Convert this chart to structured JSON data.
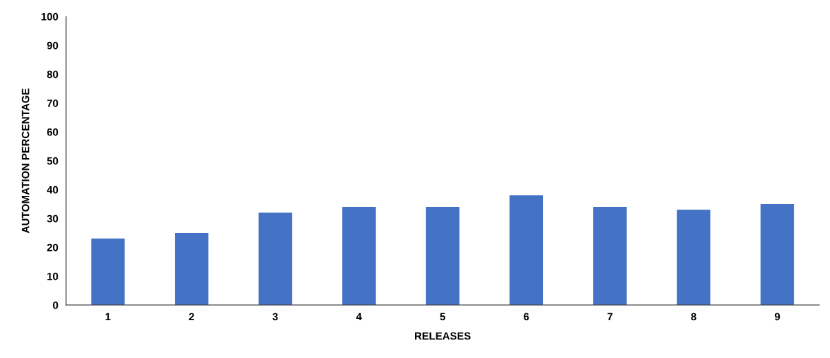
{
  "chart_data": {
    "type": "bar",
    "xlabel": "RELEASES",
    "ylabel": "AUTOMATION PERCENTAGE",
    "categories": [
      "1",
      "2",
      "3",
      "4",
      "5",
      "6",
      "7",
      "8",
      "9"
    ],
    "values": [
      23,
      25,
      32,
      34,
      34,
      38,
      34,
      33,
      35
    ],
    "color": "#4472c4",
    "ylim": [
      0,
      100
    ],
    "yticks": [
      0,
      10,
      20,
      30,
      40,
      50,
      60,
      70,
      80,
      90,
      100
    ],
    "grid": false,
    "legend": false
  }
}
